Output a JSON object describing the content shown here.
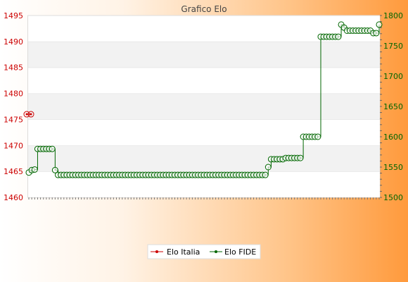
{
  "chart_data": {
    "type": "line",
    "title": "Grafico Elo",
    "y_left": {
      "min": 1460,
      "max": 1495,
      "ticks": [
        1460,
        1465,
        1470,
        1475,
        1480,
        1485,
        1490,
        1495
      ],
      "color": "#cc0000"
    },
    "y_right": {
      "min": 1500,
      "max": 1800,
      "ticks": [
        1500,
        1550,
        1600,
        1650,
        1700,
        1750,
        1800
      ],
      "color": "#006600"
    },
    "grid": "horizontal bands",
    "legend_position": "bottom-center",
    "series": [
      {
        "name": "Elo Italia",
        "axis": "left",
        "color": "#cc0000",
        "values": [
          1476,
          1476
        ]
      },
      {
        "name": "Elo FIDE",
        "axis": "right",
        "color": "#006600",
        "values": [
          1541,
          1545,
          1546,
          1580,
          1580,
          1580,
          1580,
          1580,
          1580,
          1545,
          1537,
          1537,
          1537,
          1537,
          1537,
          1537,
          1537,
          1537,
          1537,
          1537,
          1537,
          1537,
          1537,
          1537,
          1537,
          1537,
          1537,
          1537,
          1537,
          1537,
          1537,
          1537,
          1537,
          1537,
          1537,
          1537,
          1537,
          1537,
          1537,
          1537,
          1537,
          1537,
          1537,
          1537,
          1537,
          1537,
          1537,
          1537,
          1537,
          1537,
          1537,
          1537,
          1537,
          1537,
          1537,
          1537,
          1537,
          1537,
          1537,
          1537,
          1537,
          1537,
          1537,
          1537,
          1537,
          1537,
          1537,
          1537,
          1537,
          1537,
          1537,
          1537,
          1537,
          1537,
          1537,
          1537,
          1537,
          1537,
          1537,
          1537,
          1537,
          1537,
          1550,
          1563,
          1563,
          1563,
          1563,
          1563,
          1565,
          1565,
          1565,
          1565,
          1565,
          1565,
          1600,
          1600,
          1600,
          1600,
          1600,
          1600,
          1765,
          1765,
          1765,
          1765,
          1765,
          1765,
          1765,
          1785,
          1780,
          1775,
          1775,
          1775,
          1775,
          1775,
          1775,
          1775,
          1775,
          1775,
          1771,
          1771,
          1785
        ]
      }
    ]
  }
}
